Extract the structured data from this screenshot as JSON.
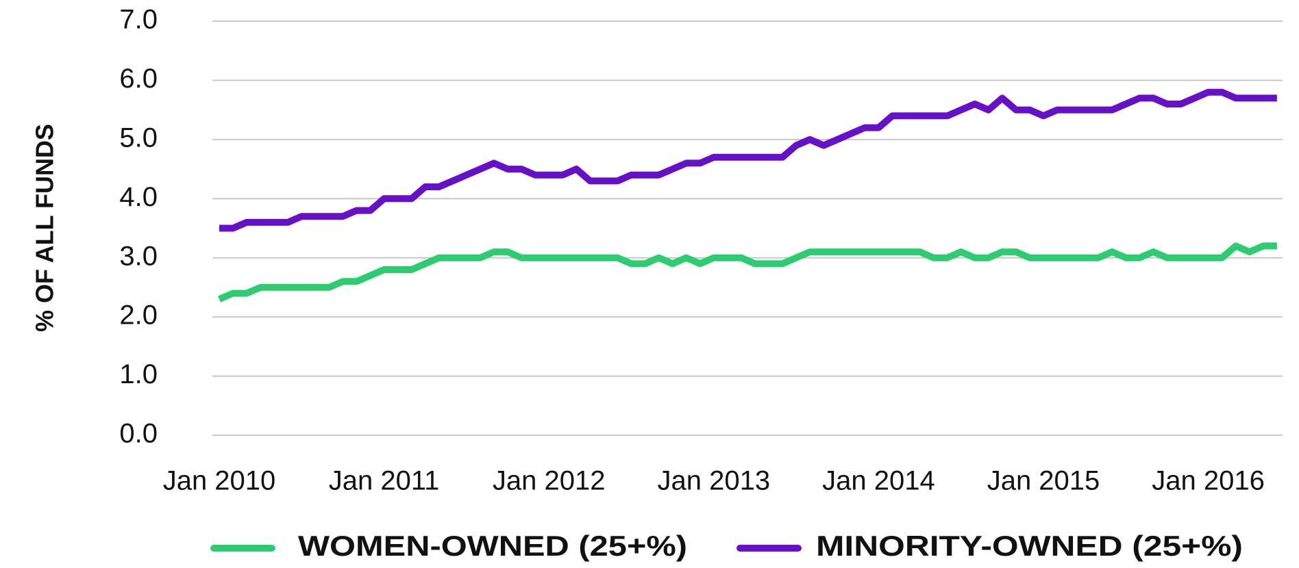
{
  "chart_data": {
    "type": "line",
    "ylabel": "% OF ALL FUNDS",
    "categories": [
      "Jan 2010",
      null,
      null,
      null,
      null,
      null,
      null,
      null,
      null,
      null,
      null,
      null,
      "Jan 2011",
      null,
      null,
      null,
      null,
      null,
      null,
      null,
      null,
      null,
      null,
      null,
      "Jan 2012",
      null,
      null,
      null,
      null,
      null,
      null,
      null,
      null,
      null,
      null,
      null,
      "Jan 2013",
      null,
      null,
      null,
      null,
      null,
      null,
      null,
      null,
      null,
      null,
      null,
      "Jan 2014",
      null,
      null,
      null,
      null,
      null,
      null,
      null,
      null,
      null,
      null,
      null,
      "Jan 2015",
      null,
      null,
      null,
      null,
      null,
      null,
      null,
      null,
      null,
      null,
      null,
      "Jan 2016",
      null,
      null,
      null,
      null,
      null
    ],
    "series": [
      {
        "name": "WOMEN-OWNED (25+%)",
        "color": "#2ecc71",
        "values": [
          2.3,
          2.4,
          2.4,
          2.5,
          2.5,
          2.5,
          2.5,
          2.5,
          2.5,
          2.6,
          2.6,
          2.7,
          2.8,
          2.8,
          2.8,
          2.9,
          3.0,
          3.0,
          3.0,
          3.0,
          3.1,
          3.1,
          3.0,
          3.0,
          3.0,
          3.0,
          3.0,
          3.0,
          3.0,
          3.0,
          2.9,
          2.9,
          3.0,
          2.9,
          3.0,
          2.9,
          3.0,
          3.0,
          3.0,
          2.9,
          2.9,
          2.9,
          3.0,
          3.1,
          3.1,
          3.1,
          3.1,
          3.1,
          3.1,
          3.1,
          3.1,
          3.1,
          3.0,
          3.0,
          3.1,
          3.0,
          3.0,
          3.1,
          3.1,
          3.0,
          3.0,
          3.0,
          3.0,
          3.0,
          3.0,
          3.1,
          3.0,
          3.0,
          3.1,
          3.0,
          3.0,
          3.0,
          3.0,
          3.0,
          3.2,
          3.1,
          3.2,
          3.2
        ]
      },
      {
        "name": "MINORITY-OWNED (25+%)",
        "color": "#6610c8",
        "values": [
          3.5,
          3.5,
          3.6,
          3.6,
          3.6,
          3.6,
          3.7,
          3.7,
          3.7,
          3.7,
          3.8,
          3.8,
          4.0,
          4.0,
          4.0,
          4.2,
          4.2,
          4.3,
          4.4,
          4.5,
          4.6,
          4.5,
          4.5,
          4.4,
          4.4,
          4.4,
          4.5,
          4.3,
          4.3,
          4.3,
          4.4,
          4.4,
          4.4,
          4.5,
          4.6,
          4.6,
          4.7,
          4.7,
          4.7,
          4.7,
          4.7,
          4.7,
          4.9,
          5.0,
          4.9,
          5.0,
          5.1,
          5.2,
          5.2,
          5.4,
          5.4,
          5.4,
          5.4,
          5.4,
          5.5,
          5.6,
          5.5,
          5.7,
          5.5,
          5.5,
          5.4,
          5.5,
          5.5,
          5.5,
          5.5,
          5.5,
          5.6,
          5.7,
          5.7,
          5.6,
          5.6,
          5.7,
          5.8,
          5.8,
          5.7,
          5.7,
          5.7,
          5.7
        ]
      }
    ],
    "ylim": [
      0,
      7
    ],
    "yticks": [
      {
        "value": 0,
        "label": "0.0"
      },
      {
        "value": 1,
        "label": "1.0"
      },
      {
        "value": 2,
        "label": "2.0"
      },
      {
        "value": 3,
        "label": "3.0"
      },
      {
        "value": 4,
        "label": "4.0"
      },
      {
        "value": 5,
        "label": "5.0"
      },
      {
        "value": 6,
        "label": "6.0"
      },
      {
        "value": 7,
        "label": "7.0"
      }
    ],
    "grid": true,
    "legend": "bottom"
  }
}
